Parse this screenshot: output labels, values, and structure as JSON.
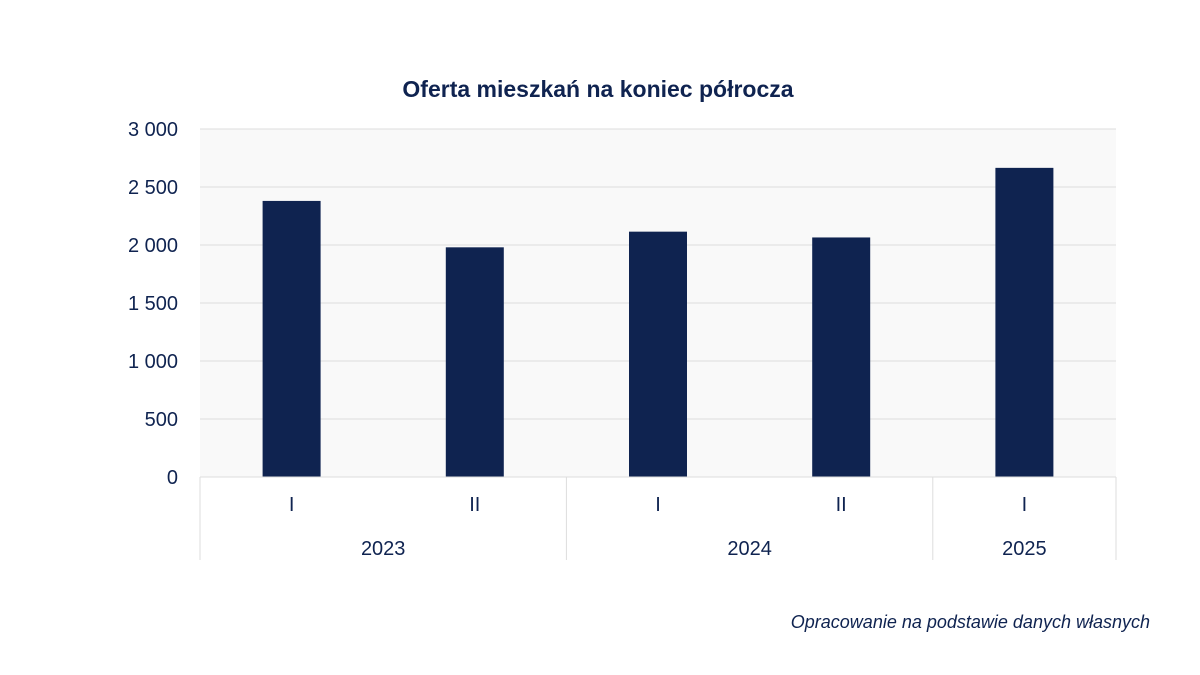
{
  "colors": {
    "bar": "#0f2350",
    "text": "#0f2350",
    "plot_background": "#f9f9f9",
    "grid": "#dddddd"
  },
  "chart_data": {
    "type": "bar",
    "title": "Oferta mieszkań na koniec półrocza",
    "categories": [
      "I",
      "II",
      "I",
      "II",
      "I"
    ],
    "groups": [
      {
        "label": "2023",
        "categories": [
          "I",
          "II"
        ]
      },
      {
        "label": "2024",
        "categories": [
          "I",
          "II"
        ]
      },
      {
        "label": "2025",
        "categories": [
          "I"
        ]
      }
    ],
    "values": [
      2380,
      1980,
      2115,
      2065,
      2665
    ],
    "ylim": [
      0,
      3000
    ],
    "yticks": [
      0,
      500,
      1000,
      1500,
      2000,
      2500,
      3000
    ],
    "ytick_labels": [
      "0",
      "500",
      "1 000",
      "1 500",
      "2 000",
      "2 500",
      "3 000"
    ],
    "grid": true,
    "xlabel": "",
    "ylabel": ""
  },
  "source_note": "Opracowanie na podstawie danych własnych"
}
